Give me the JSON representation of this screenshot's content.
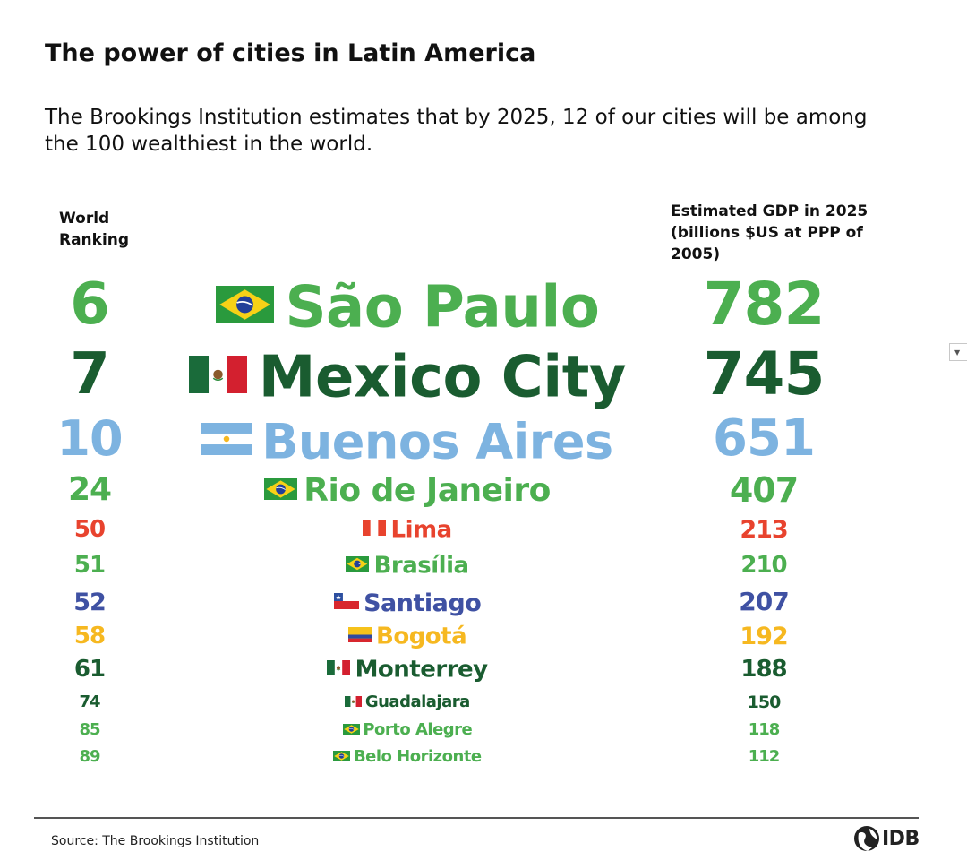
{
  "title": "The power of cities in Latin America",
  "subtitle": "The Brookings Institution estimates that by 2025, 12 of our cities will be among the 100 wealthiest in the world.",
  "header_rank": "World Ranking",
  "header_gdp": "Estimated GDP in 2025 (billions $US at PPP of 2005)",
  "cities": [
    {
      "rank": "6",
      "city": "São Paulo",
      "gdp": "782",
      "country": "brazil",
      "color": "#4caf50"
    },
    {
      "rank": "7",
      "city": "Mexico City",
      "gdp": "745",
      "country": "mexico",
      "color": "#1a5c30"
    },
    {
      "rank": "10",
      "city": "Buenos Aires",
      "gdp": "651",
      "country": "argentina",
      "color": "#7db3e0"
    },
    {
      "rank": "24",
      "city": "Rio de Janeiro",
      "gdp": "407",
      "country": "brazil",
      "color": "#4caf50"
    },
    {
      "rank": "50",
      "city": "Lima",
      "gdp": "213",
      "country": "peru",
      "color": "#e8432e"
    },
    {
      "rank": "51",
      "city": "Brasília",
      "gdp": "210",
      "country": "brazil",
      "color": "#4caf50"
    },
    {
      "rank": "52",
      "city": "Santiago",
      "gdp": "207",
      "country": "chile",
      "color": "#3f51a3"
    },
    {
      "rank": "58",
      "city": "Bogotá",
      "gdp": "192",
      "country": "colombia",
      "color": "#f6b820"
    },
    {
      "rank": "61",
      "city": "Monterrey",
      "gdp": "188",
      "country": "mexico",
      "color": "#1a5c30"
    },
    {
      "rank": "74",
      "city": "Guadalajara",
      "gdp": "150",
      "country": "mexico",
      "color": "#1a5c30"
    },
    {
      "rank": "85",
      "city": "Porto Alegre",
      "gdp": "118",
      "country": "brazil",
      "color": "#4caf50"
    },
    {
      "rank": "89",
      "city": "Belo Horizonte",
      "gdp": "112",
      "country": "brazil",
      "color": "#4caf50"
    }
  ],
  "source": "Source: The Brookings Institution",
  "logo_text": "IDB",
  "corner_control_icon": "dropdown-arrow-icon"
}
